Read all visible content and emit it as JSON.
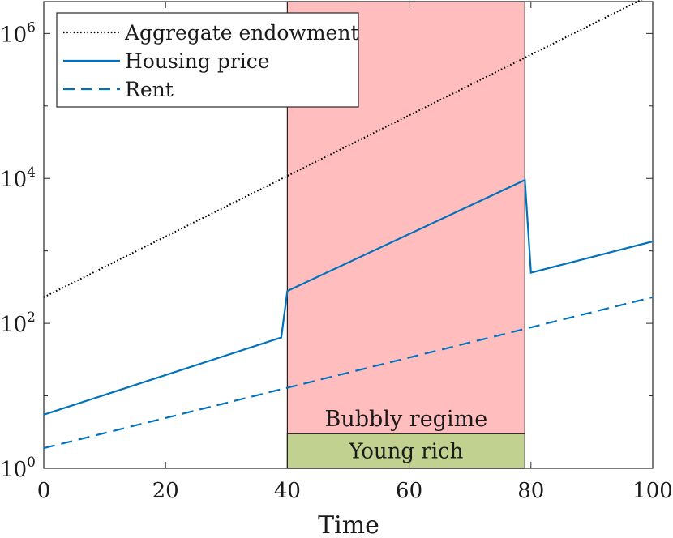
{
  "chart_data": {
    "type": "line",
    "xlabel": "Time",
    "ylabel": "",
    "xlim": [
      0,
      100
    ],
    "ylim": [
      1,
      1000000
    ],
    "yscale": "log",
    "x_ticks": [
      0,
      20,
      40,
      60,
      80,
      100
    ],
    "x_tick_labels": [
      "0",
      "20",
      "40",
      "60",
      "80",
      "100"
    ],
    "y_ticks": [
      1,
      100,
      10000,
      1000000
    ],
    "y_tick_labels": [
      {
        "base": "10",
        "exp": "0"
      },
      {
        "base": "10",
        "exp": "2"
      },
      {
        "base": "10",
        "exp": "4"
      },
      {
        "base": "10",
        "exp": "6"
      }
    ],
    "legend_position": "top-left",
    "series": [
      {
        "name": "Aggregate endowment",
        "color": "#000000",
        "line_style": "dotted",
        "x": [
          0,
          100
        ],
        "y": [
          230,
          3500000
        ]
      },
      {
        "name": "Housing price",
        "color": "#0072BD",
        "line_style": "solid",
        "x": [
          0,
          39,
          40,
          79,
          80,
          100
        ],
        "y": [
          5.5,
          64,
          280,
          9500,
          500,
          1350
        ]
      },
      {
        "name": "Rent",
        "color": "#0072BD",
        "line_style": "dashed",
        "x": [
          0,
          100
        ],
        "y": [
          1.9,
          230
        ]
      }
    ],
    "regions": [
      {
        "label": "Bubbly regime",
        "x_start": 40,
        "x_end": 79,
        "color": "#ffbdbd"
      }
    ],
    "annotations": [
      {
        "label": "Young rich",
        "x_start": 40,
        "x_end": 79,
        "y_bottom": 1,
        "y_top": 3.0,
        "color": "#c0d190"
      }
    ]
  }
}
